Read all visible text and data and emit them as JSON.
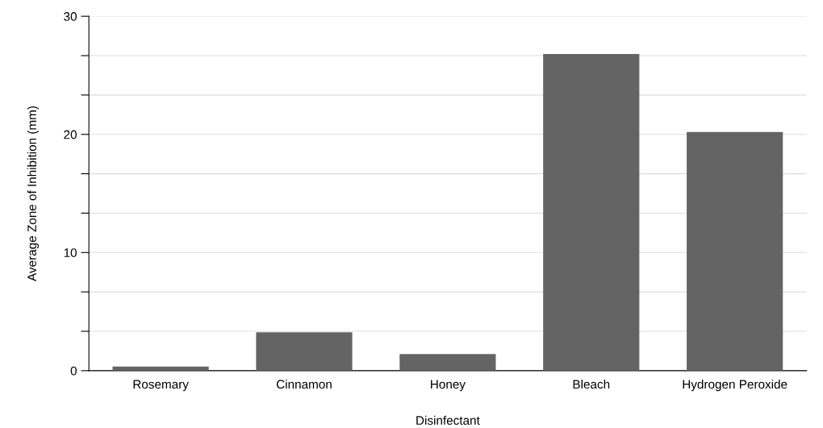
{
  "chart_data": {
    "type": "bar",
    "xlabel": "Disinfectant",
    "ylabel": "Average Zone of Inhibition (mm)",
    "categories": [
      "Rosemary",
      "Cinnamon",
      "Honey",
      "Bleach",
      "Hydrogen Peroxide"
    ],
    "values": [
      0.35,
      3.25,
      1.4,
      26.8,
      20.2
    ],
    "color": "#646464",
    "ylim": [
      0,
      30
    ],
    "yticks": [
      0,
      {
        "value": 3.333,
        "label": null
      },
      {
        "value": 6.667,
        "label": null
      },
      10,
      {
        "value": 13.333,
        "label": null
      },
      {
        "value": 16.667,
        "label": null
      },
      20,
      {
        "value": 23.333,
        "label": null
      },
      {
        "value": 26.667,
        "label": null
      },
      30
    ],
    "grid": "y"
  }
}
